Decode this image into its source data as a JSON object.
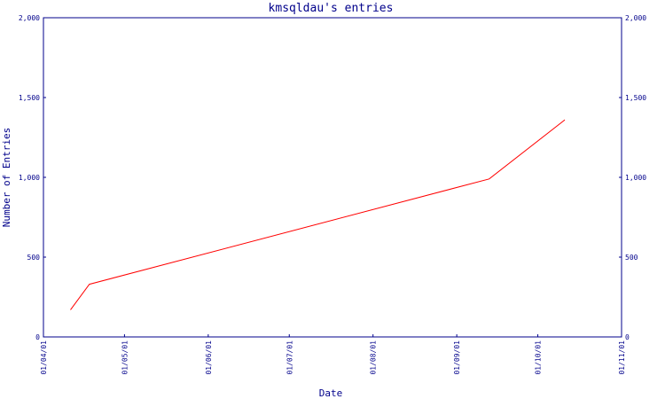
{
  "chart_data": {
    "type": "line",
    "title": "kmsqldau's entries",
    "xlabel": "Date",
    "ylabel": "Number of Entries",
    "x_ticks": [
      "01/04/01",
      "01/05/01",
      "01/06/01",
      "01/07/01",
      "01/08/01",
      "01/09/01",
      "01/10/01",
      "01/11/01"
    ],
    "y_ticks": [
      "0",
      "500",
      "1,000",
      "1,500",
      "2,000"
    ],
    "ylim": [
      0,
      2000
    ],
    "xlim": [
      "2001-04-01",
      "2001-11-01"
    ],
    "grid": false,
    "colors": {
      "axis": "#00008b",
      "series": "#ff0000"
    },
    "series": [
      {
        "points": [
          {
            "x": "2001-04-11",
            "y": 170
          },
          {
            "x": "2001-04-18",
            "y": 330
          },
          {
            "x": "2001-09-13",
            "y": 990
          },
          {
            "x": "2001-10-11",
            "y": 1360
          }
        ]
      }
    ]
  }
}
